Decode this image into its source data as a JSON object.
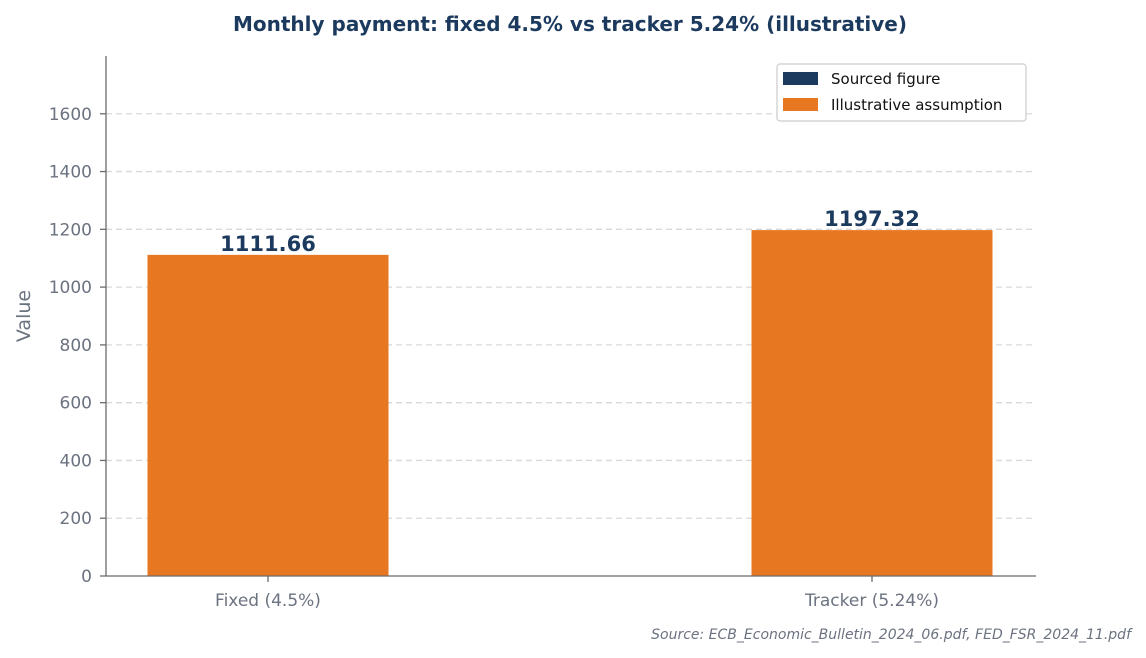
{
  "chart_data": {
    "type": "bar",
    "title": "Monthly payment: fixed 4.5% vs tracker 5.24% (illustrative)",
    "xlabel": "",
    "ylabel": "Value",
    "categories": [
      "Fixed (4.5%)",
      "Tracker (5.24%)"
    ],
    "values": [
      1111.66,
      1197.32
    ],
    "value_labels": [
      "1111.66",
      "1197.32"
    ],
    "ylim": [
      0,
      1800
    ],
    "yticks": [
      0,
      200,
      400,
      600,
      800,
      1000,
      1200,
      1400,
      1600
    ],
    "grid": true,
    "legend_position": "top-right",
    "legend": [
      {
        "label": "Sourced figure",
        "color": "#1c3a5e"
      },
      {
        "label": "Illustrative assumption",
        "color": "#e87722"
      }
    ],
    "bar_color": "#e87722",
    "source_note": "Source: ECB_Economic_Bulletin_2024_06.pdf, FED_FSR_2024_11.pdf"
  }
}
